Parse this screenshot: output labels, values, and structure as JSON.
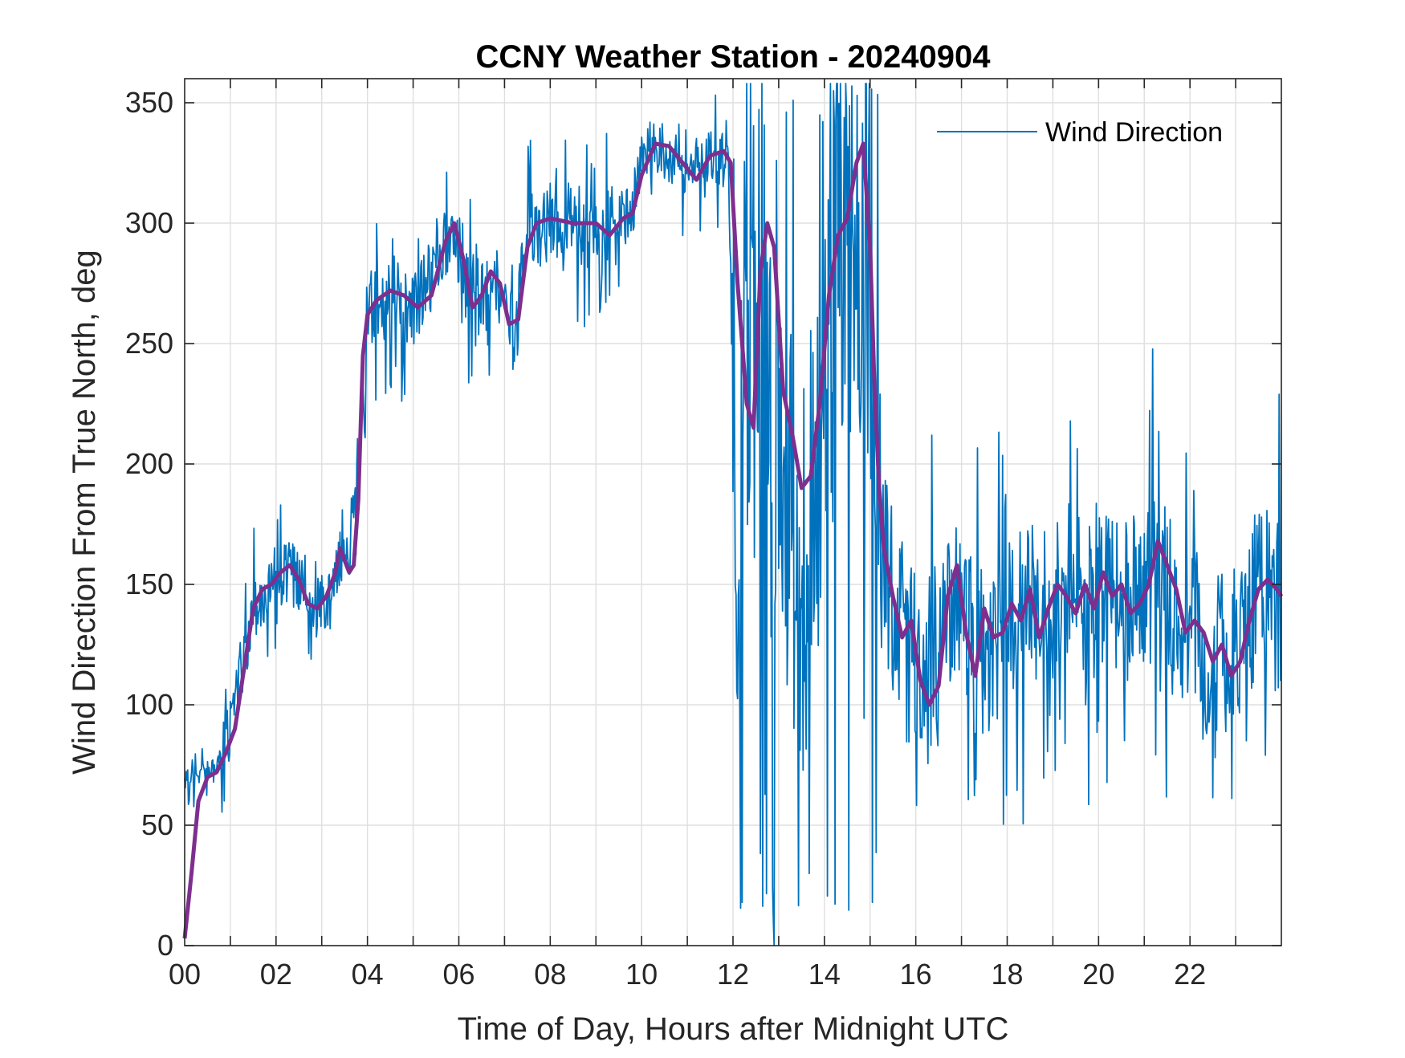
{
  "colors": {
    "raw": "#0072BD",
    "smoothed": "#7E2F8E",
    "grid": "#dfdfdf",
    "axis": "#262626"
  },
  "chart_data": {
    "type": "line",
    "title": "CCNY Weather Station - 20240904",
    "xlabel": "Time of Day, Hours after Midnight UTC",
    "ylabel": "Wind Direction From True North, deg",
    "xlim": [
      0,
      24
    ],
    "ylim": [
      0,
      360
    ],
    "grid": true,
    "legend_position": "top-right",
    "x_ticks": [
      0,
      2,
      4,
      6,
      8,
      10,
      12,
      14,
      16,
      18,
      20,
      22
    ],
    "x_tick_labels": [
      "00",
      "02",
      "04",
      "06",
      "08",
      "10",
      "12",
      "14",
      "16",
      "18",
      "20",
      "22"
    ],
    "y_ticks": [
      0,
      50,
      100,
      150,
      200,
      250,
      300,
      350
    ],
    "y_tick_labels": [
      "0",
      "50",
      "100",
      "150",
      "200",
      "250",
      "300",
      "350"
    ],
    "series": [
      {
        "name": "Wind Direction",
        "noisy": true,
        "x": [
          0,
          0.3,
          0.5,
          0.8,
          1.0,
          1.2,
          1.5,
          1.8,
          2.0,
          2.3,
          2.6,
          2.9,
          3.2,
          3.4,
          3.6,
          3.8,
          4.0,
          4.3,
          4.6,
          4.9,
          5.2,
          5.5,
          5.9,
          6.2,
          6.5,
          6.8,
          7.0,
          7.2,
          7.5,
          8.0,
          8.5,
          9.0,
          9.5,
          9.8,
          10.0,
          10.5,
          11.0,
          11.5,
          11.9,
          12.1,
          12.3,
          12.6,
          12.9,
          13.2,
          13.5,
          13.8,
          14.1,
          14.4,
          14.7,
          15.0,
          15.2,
          15.5,
          15.8,
          16.1,
          16.4,
          16.7,
          17.0,
          17.3,
          17.6,
          17.9,
          18.2,
          18.5,
          18.8,
          19.1,
          19.4,
          19.7,
          20.0,
          20.3,
          20.6,
          20.9,
          21.2,
          21.5,
          21.8,
          22.1,
          22.4,
          22.7,
          23.0,
          23.3,
          23.6,
          23.9
        ],
        "y": [
          68,
          70,
          72,
          78,
          90,
          112,
          140,
          148,
          152,
          155,
          150,
          140,
          145,
          160,
          155,
          200,
          262,
          268,
          270,
          263,
          270,
          285,
          298,
          272,
          268,
          278,
          265,
          255,
          295,
          300,
          300,
          295,
          298,
          305,
          330,
          330,
          322,
          330,
          325,
          180,
          230,
          220,
          200,
          180,
          150,
          190,
          270,
          300,
          300,
          280,
          170,
          140,
          120,
          110,
          115,
          140,
          150,
          120,
          125,
          130,
          135,
          140,
          150,
          145,
          150,
          140,
          150,
          148,
          145,
          150,
          160,
          145,
          130,
          138,
          122,
          120,
          118,
          140,
          150,
          140
        ]
      },
      {
        "name": "",
        "x": [
          0,
          0.15,
          0.3,
          0.5,
          0.7,
          0.9,
          1.1,
          1.3,
          1.5,
          1.7,
          1.9,
          2.1,
          2.3,
          2.5,
          2.7,
          2.9,
          3.1,
          3.3,
          3.4,
          3.5,
          3.6,
          3.7,
          3.8,
          3.9,
          4.0,
          4.2,
          4.5,
          4.8,
          5.1,
          5.4,
          5.7,
          5.9,
          6.1,
          6.3,
          6.5,
          6.7,
          6.9,
          7.1,
          7.3,
          7.5,
          7.7,
          8.0,
          8.5,
          9.0,
          9.3,
          9.6,
          9.8,
          10.0,
          10.3,
          10.6,
          10.9,
          11.2,
          11.5,
          11.8,
          11.95,
          12.1,
          12.3,
          12.45,
          12.6,
          12.75,
          12.9,
          13.1,
          13.3,
          13.5,
          13.7,
          13.9,
          14.1,
          14.3,
          14.5,
          14.7,
          14.85,
          15.0,
          15.1,
          15.2,
          15.3,
          15.5,
          15.7,
          15.9,
          16.1,
          16.3,
          16.5,
          16.7,
          16.9,
          17.1,
          17.3,
          17.5,
          17.7,
          17.9,
          18.1,
          18.3,
          18.5,
          18.7,
          18.9,
          19.1,
          19.3,
          19.5,
          19.7,
          19.9,
          20.1,
          20.3,
          20.5,
          20.7,
          20.9,
          21.1,
          21.3,
          21.5,
          21.7,
          21.9,
          22.1,
          22.3,
          22.5,
          22.7,
          22.9,
          23.1,
          23.3,
          23.5,
          23.7,
          23.9,
          24.0
        ],
        "y": [
          3,
          30,
          60,
          70,
          72,
          80,
          90,
          115,
          140,
          148,
          150,
          155,
          158,
          152,
          142,
          140,
          145,
          155,
          165,
          160,
          155,
          158,
          185,
          245,
          262,
          268,
          272,
          270,
          265,
          270,
          292,
          300,
          285,
          265,
          270,
          280,
          275,
          258,
          260,
          290,
          300,
          302,
          300,
          300,
          295,
          302,
          304,
          320,
          333,
          332,
          325,
          318,
          328,
          330,
          325,
          275,
          225,
          215,
          280,
          300,
          290,
          230,
          212,
          190,
          195,
          225,
          270,
          295,
          302,
          325,
          333,
          290,
          230,
          190,
          165,
          145,
          128,
          135,
          110,
          100,
          108,
          145,
          158,
          130,
          112,
          140,
          128,
          130,
          142,
          135,
          148,
          128,
          140,
          150,
          145,
          138,
          150,
          140,
          155,
          145,
          150,
          138,
          142,
          150,
          168,
          158,
          148,
          130,
          135,
          130,
          118,
          125,
          112,
          118,
          135,
          148,
          152,
          148,
          145
        ]
      }
    ]
  }
}
